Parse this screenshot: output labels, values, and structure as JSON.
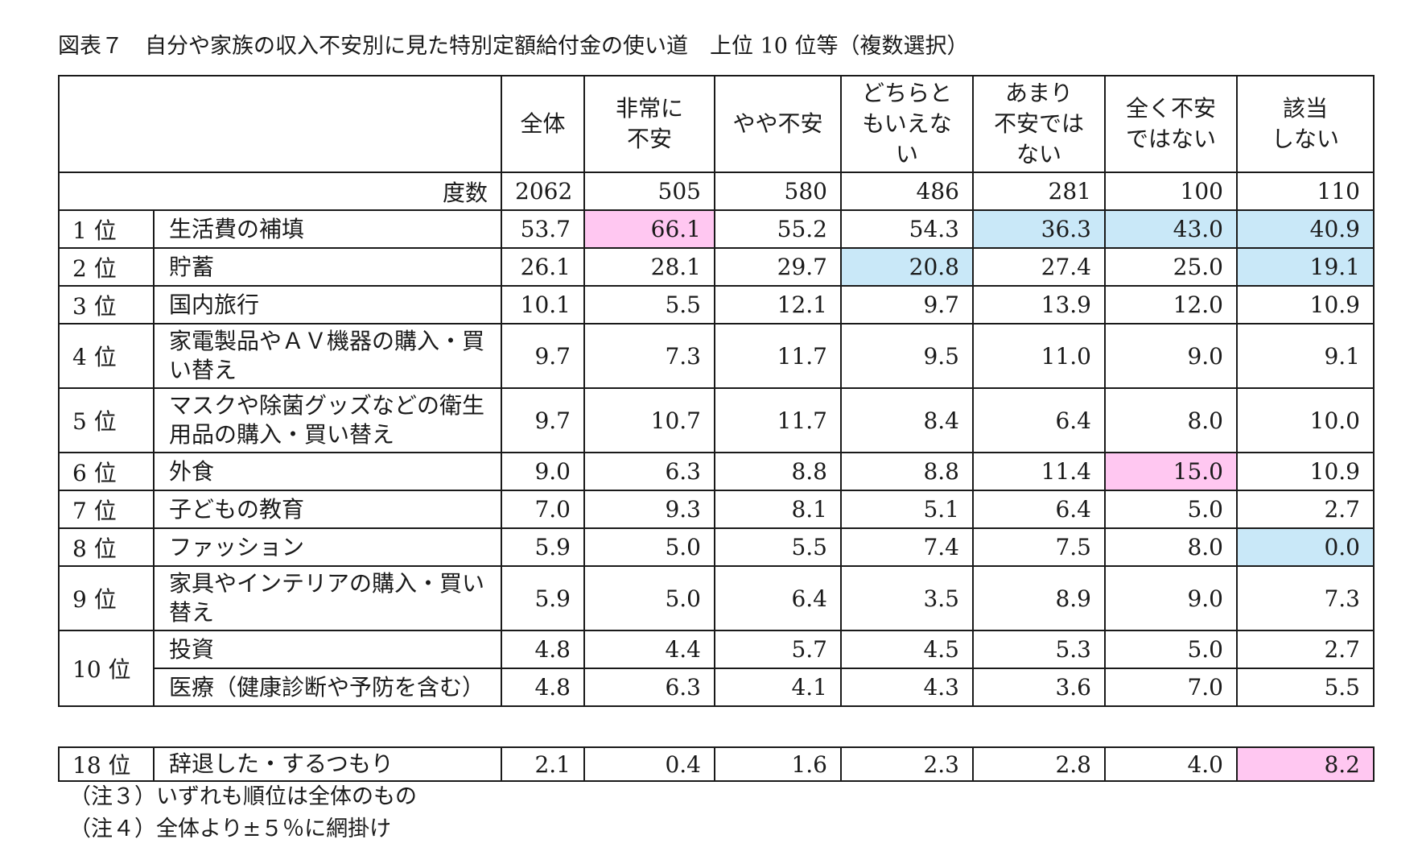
{
  "title": "図表７　自分や家族の収入不安別に見た特別定額給付金の使い道　上位 10 位等（複数選択）",
  "columns": [
    "全体",
    "非常に\n不安",
    "やや不安",
    "どちらと\nもいえな\nい",
    "あまり\n不安では\nない",
    "全く不安\nではない",
    "該当\nしない"
  ],
  "n_label": "度数",
  "n_values": [
    "2062",
    "505",
    "580",
    "486",
    "281",
    "100",
    "110"
  ],
  "rows": [
    {
      "rank": "1 位",
      "item": "生活費の補填",
      "values": [
        "53.7",
        "66.1",
        "55.2",
        "54.3",
        "36.3",
        "43.0",
        "40.9"
      ],
      "highlight": [
        "",
        "pink",
        "",
        "",
        "blue",
        "blue",
        "blue"
      ]
    },
    {
      "rank": "2 位",
      "item": "貯蓄",
      "values": [
        "26.1",
        "28.1",
        "29.7",
        "20.8",
        "27.4",
        "25.0",
        "19.1"
      ],
      "highlight": [
        "",
        "",
        "",
        "blue",
        "",
        "",
        "blue"
      ]
    },
    {
      "rank": "3 位",
      "item": "国内旅行",
      "values": [
        "10.1",
        "5.5",
        "12.1",
        "9.7",
        "13.9",
        "12.0",
        "10.9"
      ],
      "highlight": [
        "",
        "",
        "",
        "",
        "",
        "",
        ""
      ]
    },
    {
      "rank": "4 位",
      "item": "家電製品やＡＶ機器の購入・買い替え",
      "values": [
        "9.7",
        "7.3",
        "11.7",
        "9.5",
        "11.0",
        "9.0",
        "9.1"
      ],
      "highlight": [
        "",
        "",
        "",
        "",
        "",
        "",
        ""
      ]
    },
    {
      "rank": "5 位",
      "item": "マスクや除菌グッズなどの衛生用品の購入・買い替え",
      "values": [
        "9.7",
        "10.7",
        "11.7",
        "8.4",
        "6.4",
        "8.0",
        "10.0"
      ],
      "highlight": [
        "",
        "",
        "",
        "",
        "",
        "",
        ""
      ]
    },
    {
      "rank": "6 位",
      "item": "外食",
      "values": [
        "9.0",
        "6.3",
        "8.8",
        "8.8",
        "11.4",
        "15.0",
        "10.9"
      ],
      "highlight": [
        "",
        "",
        "",
        "",
        "",
        "pink",
        ""
      ]
    },
    {
      "rank": "7 位",
      "item": "子どもの教育",
      "values": [
        "7.0",
        "9.3",
        "8.1",
        "5.1",
        "6.4",
        "5.0",
        "2.7"
      ],
      "highlight": [
        "",
        "",
        "",
        "",
        "",
        "",
        ""
      ]
    },
    {
      "rank": "8 位",
      "item": "ファッション",
      "values": [
        "5.9",
        "5.0",
        "5.5",
        "7.4",
        "7.5",
        "8.0",
        "0.0"
      ],
      "highlight": [
        "",
        "",
        "",
        "",
        "",
        "",
        "blue"
      ]
    },
    {
      "rank": "9 位",
      "item": "家具やインテリアの購入・買い替え",
      "values": [
        "5.9",
        "5.0",
        "6.4",
        "3.5",
        "8.9",
        "9.0",
        "7.3"
      ],
      "highlight": [
        "",
        "",
        "",
        "",
        "",
        "",
        ""
      ]
    },
    {
      "rank": "10 位",
      "item": "投資",
      "values": [
        "4.8",
        "4.4",
        "5.7",
        "4.5",
        "5.3",
        "5.0",
        "2.7"
      ],
      "highlight": [
        "",
        "",
        "",
        "",
        "",
        "",
        ""
      ]
    },
    {
      "rank": "",
      "item": "医療（健康診断や予防を含む）",
      "values": [
        "4.8",
        "6.3",
        "4.1",
        "4.3",
        "3.6",
        "7.0",
        "5.5"
      ],
      "highlight": [
        "",
        "",
        "",
        "",
        "",
        "",
        ""
      ]
    }
  ],
  "extra_row": {
    "rank": "18 位",
    "item": "辞退した・するつもり",
    "values": [
      "2.1",
      "0.4",
      "1.6",
      "2.3",
      "2.8",
      "4.0",
      "8.2"
    ],
    "highlight": [
      "",
      "",
      "",
      "",
      "",
      "",
      "pink"
    ]
  },
  "notes": [
    "（注３）いずれも順位は全体のもの",
    "（注４）全体より±５％に網掛け"
  ],
  "colors": {
    "pink": "#ffc7f1",
    "blue": "#c9e8f8"
  }
}
